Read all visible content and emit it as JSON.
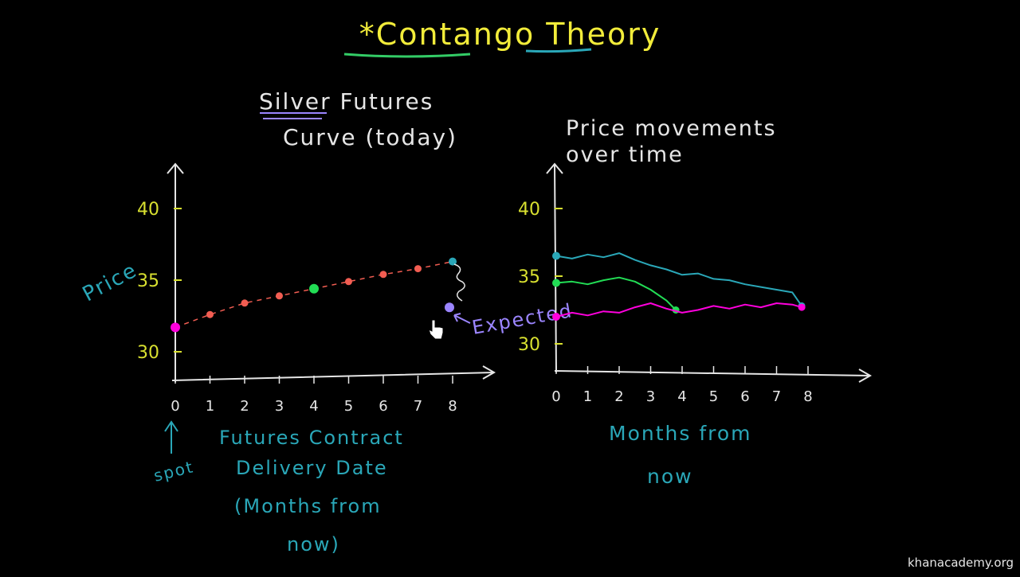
{
  "title": "*Contango Theory",
  "colors": {
    "background": "#000000",
    "title_yellow": "#f2ec3a",
    "title_green": "#33cc66",
    "axis": "#e6e6e6",
    "tick_label": "#d8e030",
    "teal": "#2aa7b8",
    "pink": "#ff00dd",
    "green": "#22dd55",
    "salmon": "#f25d52",
    "lavender": "#9b85ff"
  },
  "watermark": "khanacademy.org",
  "chart_data": [
    {
      "type": "scatter",
      "title": "Silver Futures Curve (today)",
      "title_lines": [
        "Silver Futures",
        "Curve (today)"
      ],
      "ylabel": "Price",
      "xlabel_lines": [
        "Futures Contract",
        "Delivery Date",
        "(Months from",
        "now)"
      ],
      "x_ticks": [
        "0",
        "1",
        "2",
        "3",
        "4",
        "5",
        "6",
        "7",
        "8"
      ],
      "y_ticks": [
        "30",
        "35",
        "40"
      ],
      "xlim": [
        0,
        8.7
      ],
      "ylim": [
        28,
        42
      ],
      "grid": false,
      "series": [
        {
          "x": [
            0,
            1,
            2,
            3,
            4,
            5,
            6,
            7,
            8
          ],
          "y": [
            31.7,
            32.6,
            33.4,
            33.9,
            34.4,
            34.9,
            35.4,
            35.8,
            36.3
          ],
          "point_colors": [
            "#ff00dd",
            "#f25d52",
            "#f25d52",
            "#f25d52",
            "#22dd55",
            "#f25d52",
            "#f25d52",
            "#f25d52",
            "#2aa7b8"
          ],
          "style": "dashed"
        }
      ],
      "annotations": [
        {
          "text": "spot",
          "x": 0,
          "y": 30,
          "color": "#2aa7b8"
        },
        {
          "text": "Expected",
          "x": 8,
          "y": 33.1,
          "color": "#9b85ff"
        }
      ]
    },
    {
      "type": "line",
      "title": "Price movements over time",
      "title_lines": [
        "Price movements",
        "over time"
      ],
      "xlabel_lines": [
        "Months from",
        "now"
      ],
      "x_ticks": [
        "0",
        "1",
        "2",
        "3",
        "4",
        "5",
        "6",
        "7",
        "8"
      ],
      "y_ticks": [
        "30",
        "35",
        "40"
      ],
      "xlim": [
        0,
        9.5
      ],
      "ylim": [
        28,
        42
      ],
      "grid": false,
      "series": [
        {
          "color": "#2aa7b8",
          "x": [
            0,
            0.5,
            1,
            1.5,
            2,
            2.5,
            3,
            3.5,
            4,
            4.5,
            5,
            5.5,
            6,
            6.5,
            7,
            7.5,
            7.8
          ],
          "y": [
            36.5,
            36.3,
            36.6,
            36.4,
            36.7,
            36.2,
            35.8,
            35.5,
            35.1,
            35.2,
            34.8,
            34.7,
            34.4,
            34.2,
            34.0,
            33.8,
            32.8
          ]
        },
        {
          "color": "#22dd55",
          "x": [
            0,
            0.5,
            1,
            1.5,
            2,
            2.5,
            3,
            3.5,
            3.8
          ],
          "y": [
            34.5,
            34.6,
            34.4,
            34.7,
            34.9,
            34.6,
            34.0,
            33.2,
            32.5
          ]
        },
        {
          "color": "#ff00dd",
          "x": [
            0,
            0.5,
            1,
            1.5,
            2,
            2.5,
            3,
            3.5,
            4,
            4.5,
            5,
            5.5,
            6,
            6.5,
            7,
            7.5,
            7.8
          ],
          "y": [
            32.0,
            32.3,
            32.1,
            32.4,
            32.3,
            32.7,
            33.0,
            32.6,
            32.3,
            32.5,
            32.8,
            32.6,
            32.9,
            32.7,
            33.0,
            32.9,
            32.7
          ]
        }
      ]
    }
  ]
}
